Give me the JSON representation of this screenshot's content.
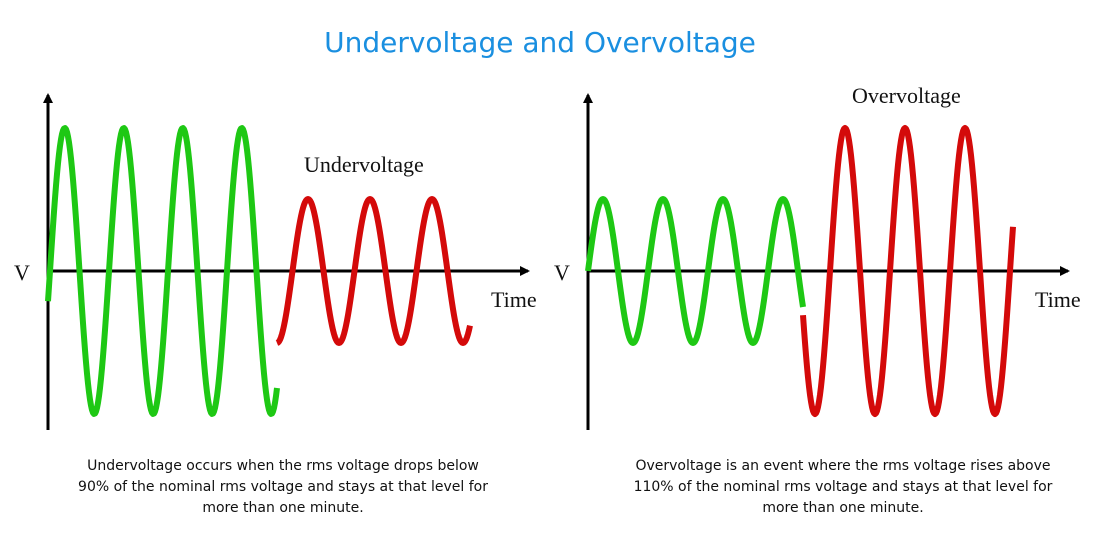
{
  "header": {
    "title": "Undervoltage and Overvoltage"
  },
  "panels": [
    {
      "y_label": "V",
      "x_label": "Time",
      "label": "Undervoltage",
      "caption": [
        "Undervoltage occurs when the rms voltage drops below",
        "90% of the nominal rms voltage and stays at that level for",
        "more than one minute."
      ]
    },
    {
      "y_label": "V",
      "x_label": "Time",
      "label": "Overvoltage",
      "caption": [
        "Overvoltage is an event where the rms voltage rises above",
        "110% of the nominal rms voltage and stays at that level for",
        "more than one minute."
      ]
    }
  ]
}
